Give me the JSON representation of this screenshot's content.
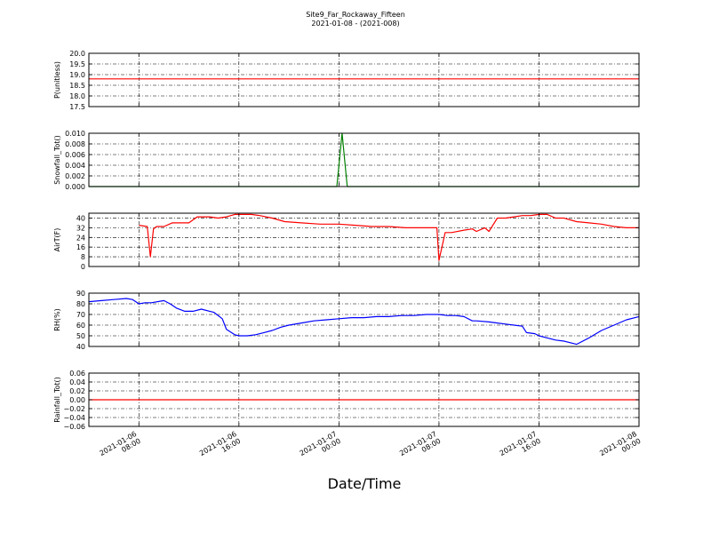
{
  "figure": {
    "title_line1": "Site9_Far_Rockaway_Fifteen",
    "title_line2": "2021-01-08 - (2021-008)",
    "xlabel": "Date/Time"
  },
  "chart_data": [
    {
      "type": "line",
      "ylabel": "P(unitless)",
      "ylim": [
        17.5,
        20.0
      ],
      "yticks": [
        17.5,
        18.0,
        18.5,
        19.0,
        19.5,
        20.0
      ],
      "ytick_labels": [
        "17.5",
        "18.0",
        "18.5",
        "19.0",
        "19.5",
        "20.0"
      ],
      "grid": true,
      "series": [
        {
          "color": "#ff0000",
          "x": [
            "2021-01-06 00:00",
            "2021-01-08 00:00"
          ],
          "y": [
            18.8,
            18.8
          ]
        }
      ]
    },
    {
      "type": "line",
      "ylabel": "Snowfall_Tot()",
      "ylim": [
        0.0,
        0.01
      ],
      "yticks": [
        0.0,
        0.002,
        0.004,
        0.006,
        0.008,
        0.01
      ],
      "ytick_labels": [
        "0.000",
        "0.002",
        "0.004",
        "0.006",
        "0.008",
        "0.010"
      ],
      "grid": true,
      "series": [
        {
          "color": "#008000",
          "x": [
            "2021-01-06 00:00",
            "2021-01-06 23:50",
            "2021-01-07 00:15",
            "2021-01-07 00:40",
            "2021-01-08 00:00"
          ],
          "y": [
            0.0,
            0.0,
            0.01,
            0.0,
            0.0
          ]
        }
      ]
    },
    {
      "type": "line",
      "ylabel": "AirT(F)",
      "ylim": [
        0,
        44
      ],
      "yticks": [
        0,
        8,
        16,
        24,
        32,
        40
      ],
      "ytick_labels": [
        "0",
        "8",
        "16",
        "24",
        "32",
        "40"
      ],
      "grid": true,
      "series": [
        {
          "color": "#ff0000",
          "x": [
            "2021-01-06 08:00",
            "2021-01-06 08:40",
            "2021-01-06 08:55",
            "2021-01-06 09:10",
            "2021-01-06 09:25",
            "2021-01-06 10:00",
            "2021-01-06 10:40",
            "2021-01-06 11:20",
            "2021-01-06 12:00",
            "2021-01-06 12:40",
            "2021-01-06 13:40",
            "2021-01-06 14:20",
            "2021-01-06 15:00",
            "2021-01-06 15:40",
            "2021-01-06 16:20",
            "2021-01-06 17:00",
            "2021-01-06 17:40",
            "2021-01-06 18:40",
            "2021-01-06 19:40",
            "2021-01-06 21:00",
            "2021-01-06 22:30",
            "2021-01-07 00:00",
            "2021-01-07 01:20",
            "2021-01-07 02:40",
            "2021-01-07 04:00",
            "2021-01-07 05:20",
            "2021-01-07 06:40",
            "2021-01-07 07:50",
            "2021-01-07 08:00",
            "2021-01-07 08:30",
            "2021-01-07 09:00",
            "2021-01-07 10:00",
            "2021-01-07 10:40",
            "2021-01-07 11:00",
            "2021-01-07 11:40",
            "2021-01-07 12:00",
            "2021-01-07 12:40",
            "2021-01-07 13:20",
            "2021-01-07 14:00",
            "2021-01-07 14:40",
            "2021-01-07 15:20",
            "2021-01-07 16:00",
            "2021-01-07 16:40",
            "2021-01-07 17:20",
            "2021-01-07 18:00",
            "2021-01-07 19:00",
            "2021-01-07 20:00",
            "2021-01-07 21:00",
            "2021-01-07 22:00",
            "2021-01-07 23:00",
            "2021-01-08 00:00"
          ],
          "y": [
            34,
            33,
            8,
            31,
            33,
            33,
            36,
            36,
            36,
            41,
            41,
            40,
            41,
            43,
            43,
            43,
            42,
            40,
            37,
            36,
            35,
            35,
            34,
            33,
            33,
            32,
            32,
            32,
            5,
            28,
            28,
            30,
            31,
            29,
            32,
            29,
            40,
            40,
            41,
            42,
            42,
            43,
            43,
            40,
            40,
            37,
            36,
            35,
            33,
            32,
            32
          ]
        }
      ]
    },
    {
      "type": "line",
      "ylabel": "RH(%)",
      "ylim": [
        40,
        90
      ],
      "yticks": [
        40,
        50,
        60,
        70,
        80,
        90
      ],
      "ytick_labels": [
        "40",
        "50",
        "60",
        "70",
        "80",
        "90"
      ],
      "grid": true,
      "series": [
        {
          "color": "#0000ff",
          "x": [
            "2021-01-06 04:00",
            "2021-01-06 05:00",
            "2021-01-06 06:00",
            "2021-01-06 07:00",
            "2021-01-06 07:30",
            "2021-01-06 08:00",
            "2021-01-06 08:30",
            "2021-01-06 09:00",
            "2021-01-06 10:00",
            "2021-01-06 10:30",
            "2021-01-06 11:00",
            "2021-01-06 11:40",
            "2021-01-06 12:20",
            "2021-01-06 13:00",
            "2021-01-06 13:40",
            "2021-01-06 14:00",
            "2021-01-06 14:40",
            "2021-01-06 15:00",
            "2021-01-06 15:40",
            "2021-01-06 16:00",
            "2021-01-06 16:40",
            "2021-01-06 17:20",
            "2021-01-06 18:00",
            "2021-01-06 18:40",
            "2021-01-06 19:20",
            "2021-01-06 20:00",
            "2021-01-06 21:00",
            "2021-01-06 22:00",
            "2021-01-06 23:00",
            "2021-01-07 00:00",
            "2021-01-07 01:00",
            "2021-01-07 02:00",
            "2021-01-07 03:00",
            "2021-01-07 04:00",
            "2021-01-07 05:00",
            "2021-01-07 06:00",
            "2021-01-07 07:00",
            "2021-01-07 08:00",
            "2021-01-07 08:40",
            "2021-01-07 09:20",
            "2021-01-07 10:00",
            "2021-01-07 10:40",
            "2021-01-07 11:00",
            "2021-01-07 12:00",
            "2021-01-07 12:40",
            "2021-01-07 13:20",
            "2021-01-07 14:00",
            "2021-01-07 14:40",
            "2021-01-07 15:00",
            "2021-01-07 15:40",
            "2021-01-07 16:00",
            "2021-01-07 16:40",
            "2021-01-07 17:20",
            "2021-01-07 18:00",
            "2021-01-07 19:00",
            "2021-01-07 20:00",
            "2021-01-07 21:00",
            "2021-01-07 22:00",
            "2021-01-07 23:00",
            "2021-01-08 00:00"
          ],
          "y": [
            82,
            83,
            84,
            85,
            84,
            80,
            81,
            81,
            83,
            80,
            76,
            73,
            73,
            75,
            73,
            72,
            66,
            56,
            51,
            50,
            50,
            51,
            53,
            55,
            58,
            60,
            62,
            64,
            65,
            66,
            67,
            67,
            68,
            68,
            69,
            69,
            70,
            70,
            69,
            69,
            68,
            64,
            64,
            63,
            62,
            61,
            60,
            59,
            53,
            52,
            50,
            48,
            46,
            45,
            42,
            48,
            55,
            60,
            65,
            68
          ]
        }
      ]
    },
    {
      "type": "line",
      "ylabel": "Rainfall_Tot()",
      "ylim": [
        -0.06,
        0.06
      ],
      "yticks": [
        -0.06,
        -0.04,
        -0.02,
        0.0,
        0.02,
        0.04,
        0.06
      ],
      "ytick_labels": [
        "−0.06",
        "−0.04",
        "−0.02",
        "0.00",
        "0.02",
        "0.04",
        "0.06"
      ],
      "grid": true,
      "series": [
        {
          "color": "#ff0000",
          "x": [
            "2021-01-06 00:00",
            "2021-01-08 00:00"
          ],
          "y": [
            0.0,
            0.0
          ]
        }
      ]
    }
  ],
  "x_axis": {
    "range": [
      "2021-01-06 04:00",
      "2021-01-08 00:00"
    ],
    "ticks": [
      "2021-01-06 08:00",
      "2021-01-06 16:00",
      "2021-01-07 00:00",
      "2021-01-07 08:00",
      "2021-01-07 16:00",
      "2021-01-08 00:00"
    ],
    "tick_labels": [
      [
        "2021-01-06",
        "08:00"
      ],
      [
        "2021-01-06",
        "16:00"
      ],
      [
        "2021-01-07",
        "00:00"
      ],
      [
        "2021-01-07",
        "08:00"
      ],
      [
        "2021-01-07",
        "16:00"
      ],
      [
        "2021-01-08",
        "00:00"
      ]
    ]
  }
}
